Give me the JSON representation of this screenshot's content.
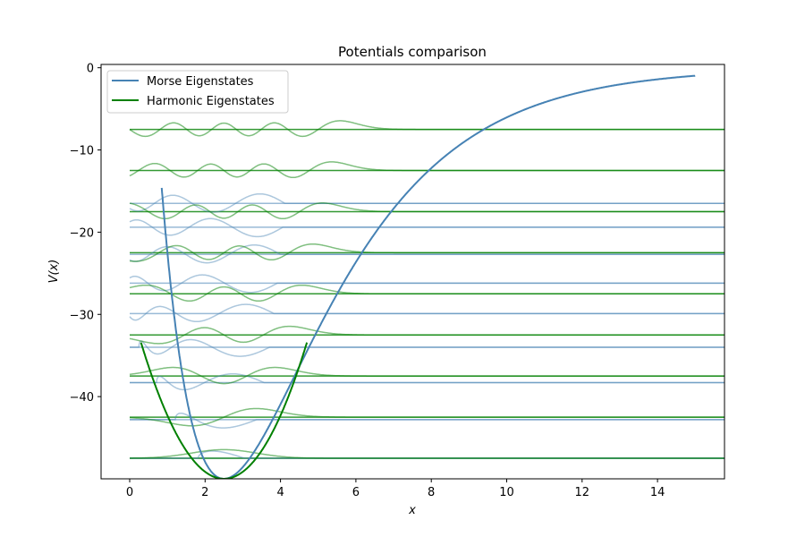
{
  "chart_data": {
    "type": "line",
    "title": "Potentials comparison",
    "xlabel": "x",
    "ylabel": "V(x)",
    "xlim": [
      -0.7,
      15.8
    ],
    "ylim": [
      -50.0,
      0.4
    ],
    "xticks": [
      0,
      2,
      4,
      6,
      8,
      10,
      12,
      14
    ],
    "xtick_labels": [
      "0",
      "2",
      "4",
      "6",
      "8",
      "10",
      "12",
      "14"
    ],
    "yticks": [
      0,
      -10,
      -20,
      -30,
      -40
    ],
    "ytick_labels": [
      "0",
      "−10",
      "−20",
      "−30",
      "−40"
    ],
    "grid": false,
    "legend": {
      "placement": "top-left",
      "entries": [
        {
          "label": "Morse Eigenstates",
          "color": "#4682b4"
        },
        {
          "label": "Harmonic Eigenstates",
          "color": "#008000"
        }
      ]
    },
    "series": [
      {
        "name": "Morse Eigenstates",
        "color": "#4682b4",
        "potential": {
          "kind": "morse",
          "depth": 50,
          "a": 0.37,
          "x0": 2.5,
          "x_range": [
            1.0,
            15.0
          ]
        },
        "energy_levels": [
          -47.5,
          -42.8,
          -38.3,
          -34.0,
          -29.9,
          -26.2,
          -22.7,
          -19.4,
          -16.5
        ],
        "level_x_range": [
          0,
          15.8
        ]
      },
      {
        "name": "Harmonic Eigenstates",
        "color": "#008000",
        "potential": {
          "kind": "harmonic",
          "k": 6.85,
          "x0": 2.5,
          "minimum": -50,
          "x_range": [
            0.4,
            4.6
          ]
        },
        "energy_levels": [
          -47.5,
          -42.5,
          -37.5,
          -32.5,
          -27.5,
          -22.5,
          -17.5,
          -12.5,
          -7.5
        ],
        "level_x_range": [
          0,
          15.8
        ]
      }
    ]
  }
}
